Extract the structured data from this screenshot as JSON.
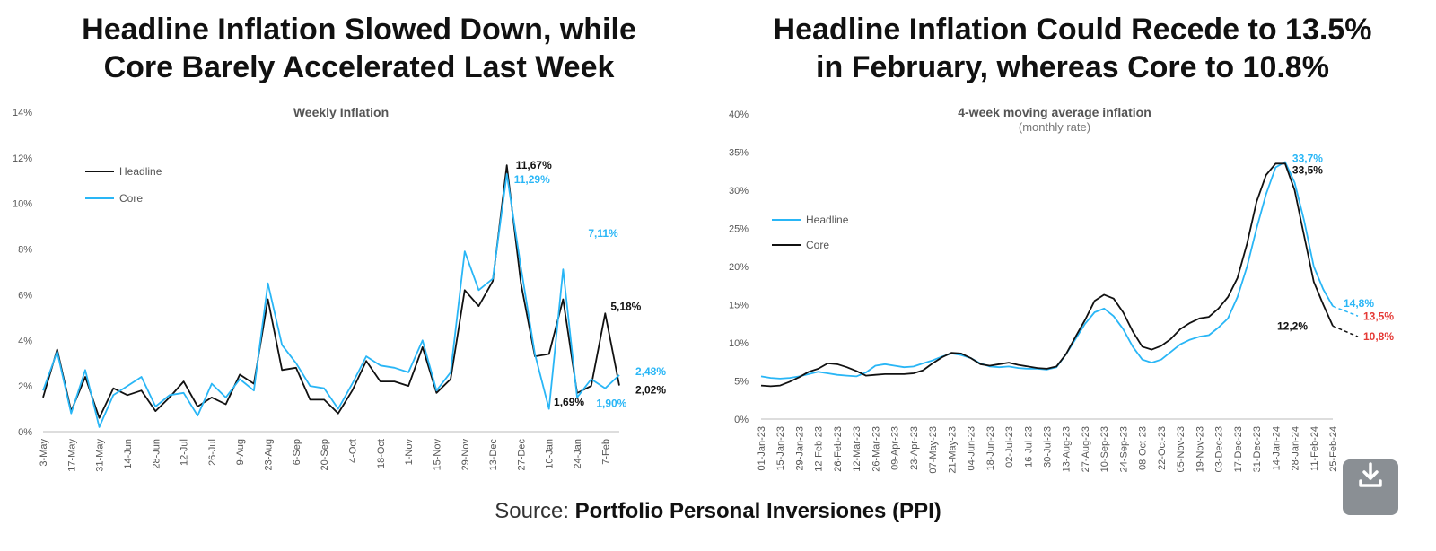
{
  "source": {
    "prefix": "Source:",
    "name": "Portfolio Personal Inversiones (PPI)"
  },
  "colors": {
    "headline": "#111111",
    "core": "#29b6f6",
    "projection": "#e53935"
  },
  "icons": {
    "download": "download-icon"
  },
  "chart_data": [
    {
      "type": "line",
      "headline": "Headline Inflation Slowed Down, while\nCore Barely Accelerated Last Week",
      "title": "Weekly Inflation",
      "ylim": [
        0,
        14
      ],
      "yticks": [
        "0%",
        "2%",
        "4%",
        "6%",
        "8%",
        "10%",
        "12%",
        "14%"
      ],
      "x": [
        "3-May",
        "10-May",
        "17-May",
        "24-May",
        "31-May",
        "7-Jun",
        "14-Jun",
        "21-Jun",
        "28-Jun",
        "5-Jul",
        "12-Jul",
        "19-Jul",
        "26-Jul",
        "2-Aug",
        "9-Aug",
        "16-Aug",
        "23-Aug",
        "30-Aug",
        "6-Sep",
        "13-Sep",
        "20-Sep",
        "27-Sep",
        "4-Oct",
        "11-Oct",
        "18-Oct",
        "25-Oct",
        "1-Nov",
        "8-Nov",
        "15-Nov",
        "22-Nov",
        "29-Nov",
        "6-Dec",
        "13-Dec",
        "20-Dec",
        "27-Dec",
        "3-Jan",
        "10-Jan",
        "17-Jan",
        "24-Jan",
        "31-Jan",
        "7-Feb",
        "14-Feb"
      ],
      "xticks": [
        "3-May",
        "17-May",
        "31-May",
        "14-Jun",
        "28-Jun",
        "12-Jul",
        "26-Jul",
        "9-Aug",
        "23-Aug",
        "6-Sep",
        "20-Sep",
        "4-Oct",
        "18-Oct",
        "1-Nov",
        "15-Nov",
        "29-Nov",
        "13-Dec",
        "27-Dec",
        "10-Jan",
        "24-Jan",
        "7-Feb"
      ],
      "legend": "top-left",
      "series": [
        {
          "name": "Headline",
          "color": "#111111",
          "values": [
            1.5,
            3.6,
            0.9,
            2.4,
            0.6,
            1.9,
            1.6,
            1.8,
            0.9,
            1.5,
            2.2,
            1.1,
            1.5,
            1.2,
            2.5,
            2.1,
            5.8,
            2.7,
            2.8,
            1.4,
            1.4,
            0.8,
            1.8,
            3.1,
            2.2,
            2.2,
            2.0,
            3.7,
            1.7,
            2.3,
            6.2,
            5.5,
            6.6,
            11.67,
            6.5,
            3.3,
            3.4,
            5.8,
            1.69,
            2.0,
            5.18,
            2.02
          ]
        },
        {
          "name": "Core",
          "color": "#29b6f6",
          "values": [
            1.8,
            3.5,
            0.8,
            2.7,
            0.2,
            1.6,
            2.0,
            2.4,
            1.1,
            1.6,
            1.7,
            0.7,
            2.1,
            1.5,
            2.3,
            1.8,
            6.5,
            3.8,
            3.0,
            2.0,
            1.9,
            1.0,
            2.1,
            3.3,
            2.9,
            2.8,
            2.6,
            4.0,
            1.8,
            2.6,
            7.9,
            6.2,
            6.7,
            11.29,
            7.2,
            3.4,
            1.0,
            7.11,
            1.5,
            2.3,
            1.9,
            2.48
          ]
        }
      ],
      "annotations": [
        {
          "text": "11,67%",
          "series": "Headline",
          "index": 33
        },
        {
          "text": "11,29%",
          "series": "Core",
          "index": 33
        },
        {
          "text": "7,11%",
          "series": "Core",
          "index": 37
        },
        {
          "text": "1,69%",
          "series": "Headline",
          "index": 38
        },
        {
          "text": "1,90%",
          "series": "Core",
          "index": 40
        },
        {
          "text": "5,18%",
          "series": "Headline",
          "index": 40
        },
        {
          "text": "2,48%",
          "series": "Core",
          "index": 41
        },
        {
          "text": "2,02%",
          "series": "Headline",
          "index": 41
        }
      ]
    },
    {
      "type": "line",
      "headline": "Headline Inflation Could Recede to 13.5%\nin February, whereas Core to 10.8%",
      "title": "4-week moving average inflation",
      "subtitle": "(monthly rate)",
      "ylim": [
        0,
        40
      ],
      "yticks": [
        "0%",
        "5%",
        "10%",
        "15%",
        "20%",
        "25%",
        "30%",
        "35%",
        "40%"
      ],
      "x": [
        "01-Jan-23",
        "08-Jan-23",
        "15-Jan-23",
        "22-Jan-23",
        "29-Jan-23",
        "05-Feb-23",
        "12-Feb-23",
        "19-Feb-23",
        "26-Feb-23",
        "05-Mar-23",
        "12-Mar-23",
        "19-Mar-23",
        "26-Mar-23",
        "02-Apr-23",
        "09-Apr-23",
        "16-Apr-23",
        "23-Apr-23",
        "30-Apr-23",
        "07-May-23",
        "14-May-23",
        "21-May-23",
        "28-May-23",
        "04-Jun-23",
        "11-Jun-23",
        "18-Jun-23",
        "25-Jun-23",
        "02-Jul-23",
        "09-Jul-23",
        "16-Jul-23",
        "23-Jul-23",
        "30-Jul-23",
        "06-Aug-23",
        "13-Aug-23",
        "20-Aug-23",
        "27-Aug-23",
        "03-Sep-23",
        "10-Sep-23",
        "17-Sep-23",
        "24-Sep-23",
        "01-Oct-23",
        "08-Oct-23",
        "15-Oct-23",
        "22-Oct-23",
        "29-Oct-23",
        "05-Nov-23",
        "12-Nov-23",
        "19-Nov-23",
        "26-Nov-23",
        "03-Dec-23",
        "10-Dec-23",
        "17-Dec-23",
        "24-Dec-23",
        "31-Dec-23",
        "07-Jan-24",
        "14-Jan-24",
        "21-Jan-24",
        "28-Jan-24",
        "04-Feb-24",
        "11-Feb-24",
        "18-Feb-24",
        "25-Feb-24"
      ],
      "xticks": [
        "01-Jan-23",
        "15-Jan-23",
        "29-Jan-23",
        "12-Feb-23",
        "26-Feb-23",
        "12-Mar-23",
        "26-Mar-23",
        "09-Apr-23",
        "23-Apr-23",
        "07-May-23",
        "21-May-23",
        "04-Jun-23",
        "18-Jun-23",
        "02-Jul-23",
        "16-Jul-23",
        "30-Jul-23",
        "13-Aug-23",
        "27-Aug-23",
        "10-Sep-23",
        "24-Sep-23",
        "08-Oct-23",
        "22-Oct-23",
        "05-Nov-23",
        "19-Nov-23",
        "03-Dec-23",
        "17-Dec-23",
        "31-Dec-23",
        "14-Jan-24",
        "28-Jan-24",
        "11-Feb-24",
        "25-Feb-24"
      ],
      "legend": "top-left",
      "series": [
        {
          "name": "Headline",
          "color": "#29b6f6",
          "values": [
            5.6,
            5.4,
            5.3,
            5.4,
            5.6,
            5.9,
            6.2,
            6.0,
            5.8,
            5.7,
            5.6,
            6.1,
            7.0,
            7.2,
            7.0,
            6.8,
            6.9,
            7.3,
            7.7,
            8.2,
            8.6,
            8.4,
            8.0,
            7.3,
            6.9,
            6.8,
            6.9,
            6.7,
            6.6,
            6.6,
            6.5,
            6.8,
            8.5,
            10.5,
            12.5,
            14.0,
            14.5,
            13.5,
            11.8,
            9.5,
            7.8,
            7.4,
            7.8,
            8.8,
            9.8,
            10.4,
            10.8,
            11.0,
            12.0,
            13.2,
            16.0,
            20.0,
            25.0,
            29.5,
            33.0,
            33.7,
            31.0,
            26.0,
            20.0,
            17.0,
            14.8
          ]
        },
        {
          "name": "Core",
          "color": "#111111",
          "values": [
            4.4,
            4.3,
            4.4,
            4.9,
            5.5,
            6.2,
            6.6,
            7.3,
            7.2,
            6.8,
            6.3,
            5.7,
            5.8,
            5.9,
            5.9,
            5.9,
            6.0,
            6.4,
            7.3,
            8.1,
            8.7,
            8.6,
            8.0,
            7.2,
            7.0,
            7.2,
            7.4,
            7.1,
            6.9,
            6.7,
            6.6,
            6.9,
            8.5,
            10.8,
            13.0,
            15.5,
            16.3,
            15.8,
            14.0,
            11.5,
            9.5,
            9.1,
            9.6,
            10.5,
            11.8,
            12.6,
            13.2,
            13.4,
            14.5,
            16.0,
            18.5,
            23.0,
            28.5,
            32.0,
            33.5,
            33.5,
            30.0,
            24.0,
            18.0,
            15.0,
            12.2
          ]
        }
      ],
      "projections": [
        {
          "series": "Headline",
          "value": 13.5,
          "label": "13,5%"
        },
        {
          "series": "Core",
          "value": 10.8,
          "label": "10,8%"
        }
      ],
      "annotations": [
        {
          "text": "33,7%",
          "series": "Headline",
          "index": 55
        },
        {
          "text": "33,5%",
          "series": "Core",
          "index": 55
        },
        {
          "text": "14,8%",
          "series": "Headline",
          "index": 60
        },
        {
          "text": "12,2%",
          "series": "Core",
          "index": 60
        }
      ]
    }
  ]
}
